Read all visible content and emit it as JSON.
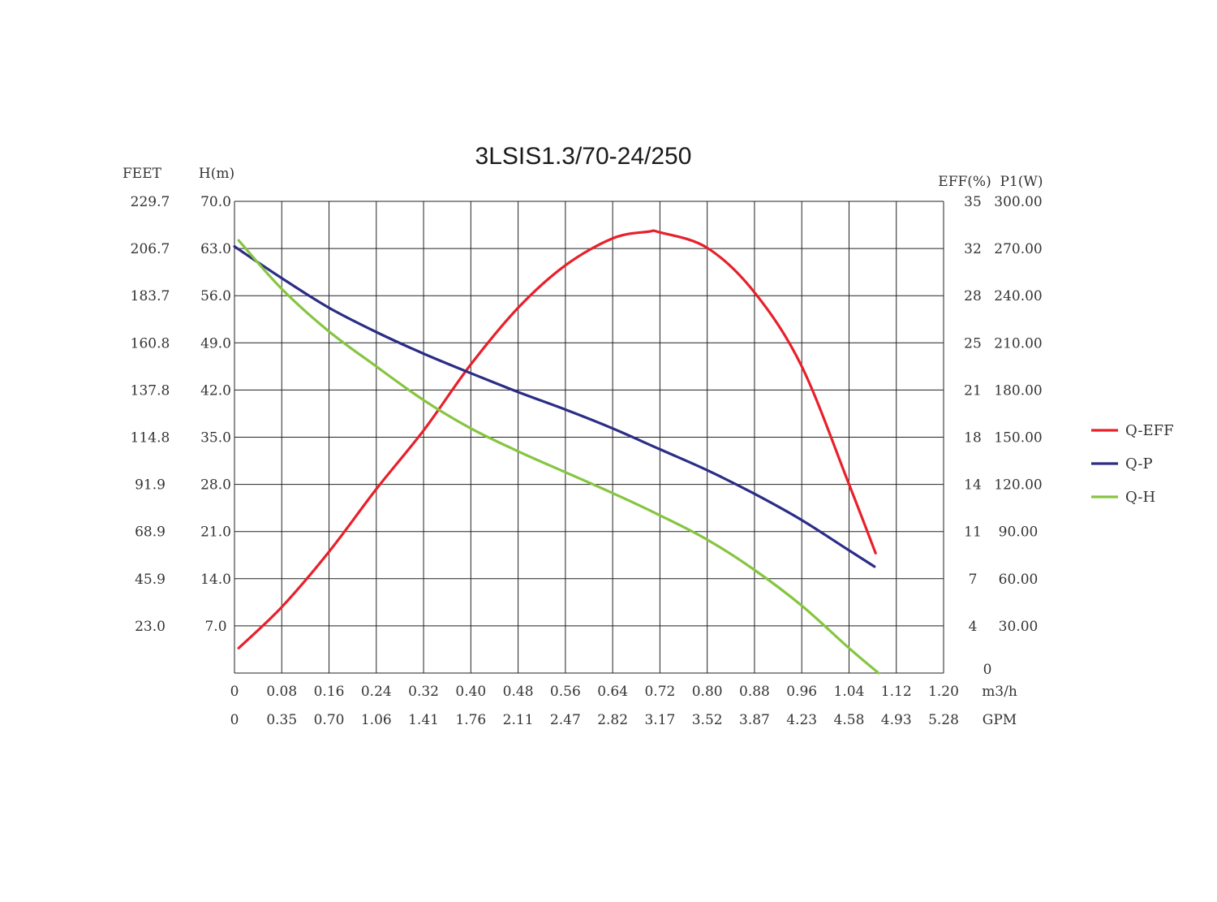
{
  "chart_data": {
    "type": "line",
    "title": "3LSIS1.3/70-24/250",
    "x_unit_label": "m3/h",
    "x2_unit_label": "GPM",
    "x_ticks": [
      "0",
      "0.08",
      "0.16",
      "0.24",
      "0.32",
      "0.40",
      "0.48",
      "0.56",
      "0.64",
      "0.72",
      "0.80",
      "0.88",
      "0.96",
      "1.04",
      "1.12",
      "1.20"
    ],
    "x2_ticks": [
      "0",
      "0.35",
      "0.70",
      "1.06",
      "1.41",
      "1.76",
      "2.11",
      "2.47",
      "2.82",
      "3.17",
      "3.52",
      "3.87",
      "4.23",
      "4.58",
      "4.93",
      "5.28"
    ],
    "xlim": [
      0,
      1.2
    ],
    "left_axis_feet_label": "FEET",
    "left_axis_feet_ticks": [
      "229.7",
      "206.7",
      "183.7",
      "160.8",
      "137.8",
      "114.8",
      "91.9",
      "68.9",
      "45.9",
      "23.0"
    ],
    "left_axis_head_label": "H(m)",
    "left_axis_head_ticks": [
      "70.0",
      "63.0",
      "56.0",
      "49.0",
      "42.0",
      "35.0",
      "28.0",
      "21.0",
      "14.0",
      "7.0"
    ],
    "ylim": [
      0,
      70
    ],
    "right_axis_eff_label": "EFF(%)",
    "right_axis_eff_ticks": [
      "35",
      "32",
      "28",
      "25",
      "21",
      "18",
      "14",
      "11",
      "7",
      "4"
    ],
    "right_axis_power_label": "P1(W)",
    "right_axis_power_ticks": [
      "300.00",
      "270.00",
      "240.00",
      "210.00",
      "180.00",
      "150.00",
      "120.00",
      "90.00",
      "60.00",
      "30.00"
    ],
    "right_axis_zero_label": "0",
    "grid": true,
    "legend_position": "right",
    "series": [
      {
        "name": "Q-EFF",
        "color": "#e8202a",
        "x": [
          0.007,
          0.08,
          0.16,
          0.24,
          0.32,
          0.4,
          0.48,
          0.56,
          0.64,
          0.7,
          0.72,
          0.8,
          0.88,
          0.96,
          1.04,
          1.085
        ],
        "y": [
          3.7,
          9.8,
          18.0,
          27.3,
          36.0,
          45.8,
          54.2,
          60.5,
          64.5,
          65.5,
          65.4,
          63.1,
          56.5,
          45.5,
          28.0,
          17.8
        ]
      },
      {
        "name": "Q-P",
        "color": "#2b2d86",
        "x": [
          0.0,
          0.08,
          0.16,
          0.24,
          0.32,
          0.4,
          0.48,
          0.56,
          0.64,
          0.72,
          0.8,
          0.88,
          0.96,
          1.04,
          1.083
        ],
        "y": [
          63.3,
          58.6,
          54.2,
          50.6,
          47.4,
          44.5,
          41.7,
          39.1,
          36.3,
          33.2,
          30.1,
          26.6,
          22.7,
          18.2,
          15.8
        ]
      },
      {
        "name": "Q-H",
        "color": "#86c540",
        "x": [
          0.007,
          0.08,
          0.16,
          0.24,
          0.32,
          0.4,
          0.48,
          0.56,
          0.64,
          0.72,
          0.8,
          0.88,
          0.96,
          1.04,
          1.09
        ],
        "y": [
          64.2,
          57.0,
          50.7,
          45.5,
          40.5,
          36.3,
          32.9,
          29.8,
          26.7,
          23.4,
          19.8,
          15.3,
          10.0,
          3.7,
          0.0
        ]
      }
    ]
  }
}
